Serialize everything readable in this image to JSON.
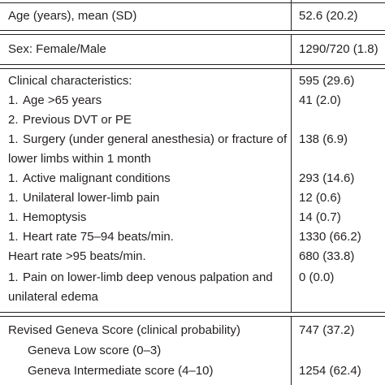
{
  "rows": {
    "age": {
      "label": "Age (years), mean (SD)",
      "value": "52.6 (20.2)"
    },
    "sex": {
      "label": "Sex: Female/Male",
      "value": "1290/720 (1.8)"
    },
    "clinical": {
      "label": "Clinical characteristics:",
      "value": "595 (29.6)"
    },
    "age65": {
      "num": "1.",
      "label": "Age >65 years",
      "value": "41 (2.0)"
    },
    "dvt": {
      "num": "2.",
      "label": "Previous DVT or PE",
      "value": ""
    },
    "surgery": {
      "num": "1.",
      "label_line1": "Surgery (under general anesthesia) or fracture of",
      "label_line2": "lower limbs within 1 month",
      "value": "138 (6.9)"
    },
    "malignant": {
      "num": "1.",
      "label": "Active malignant conditions",
      "value": "293 (14.6)"
    },
    "pain": {
      "num": "1.",
      "label": "Unilateral lower-limb pain",
      "value": "12 (0.6)"
    },
    "hemoptysis": {
      "num": "1.",
      "label": "Hemoptysis",
      "value": "14 (0.7)"
    },
    "heartrate75": {
      "num": "1.",
      "label": "Heart rate 75–94 beats/min.",
      "value": "1330 (66.2)"
    },
    "heartrate95": {
      "label": "Heart rate >95 beats/min.",
      "value": "680 (33.8)"
    },
    "palpation": {
      "num": "1.",
      "label_line1": "Pain on lower-limb deep venous palpation and",
      "label_line2": "unilateral edema",
      "value": "0 (0.0)"
    },
    "geneva": {
      "label": "Revised Geneva Score (clinical probability)",
      "value": "747 (37.2)"
    },
    "geneva_low": {
      "label": "Geneva Low score (0–3)",
      "value": ""
    },
    "geneva_int": {
      "label": "Geneva Intermediate score (4–10)",
      "value": "1254 (62.4)"
    }
  }
}
